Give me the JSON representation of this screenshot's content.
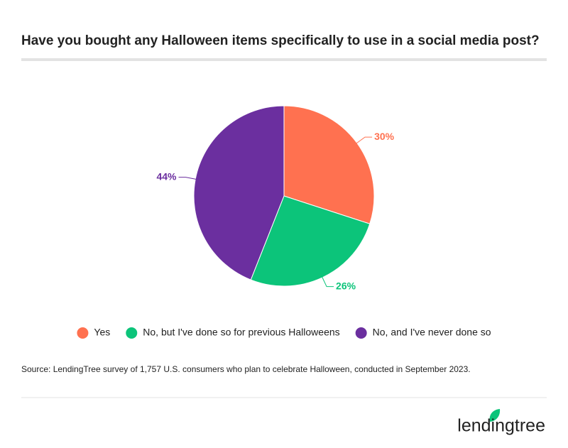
{
  "chart_data": {
    "type": "pie",
    "title": "Have you bought any Halloween items specifically to use in a social media post?",
    "categories": [
      "Yes",
      "No, but I've done so for previous Halloweens",
      "No, and I've never done so"
    ],
    "values": [
      30,
      26,
      44
    ],
    "value_labels": [
      "30%",
      "26%",
      "44%"
    ],
    "colors": [
      "#ff7150",
      "#0cc47a",
      "#6b2f9f"
    ],
    "legend": "bottom",
    "source": "Source: LendingTree survey of 1,757 U.S. consumers who plan to celebrate Halloween, conducted in September 2023.",
    "brand": "lendingtree"
  }
}
